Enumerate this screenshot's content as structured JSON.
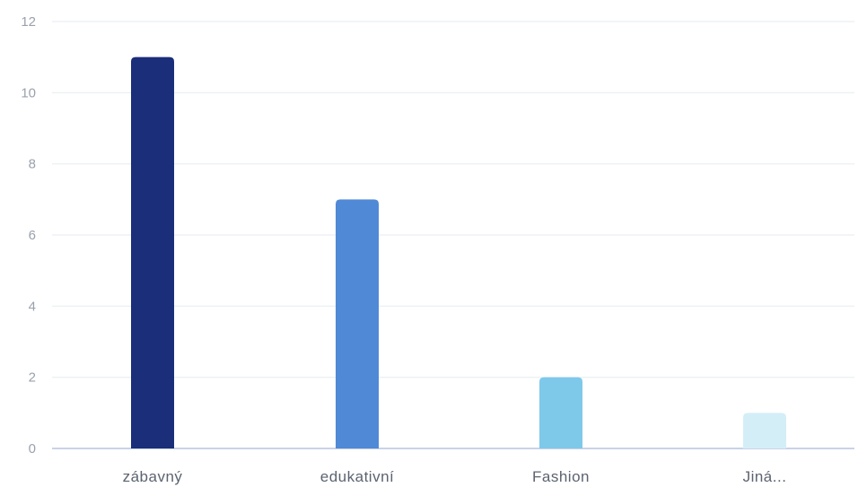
{
  "chart_data": {
    "type": "bar",
    "categories": [
      "zábavný",
      "edukativní",
      "Fashion",
      "Jiná..."
    ],
    "values": [
      11,
      7,
      2,
      1
    ],
    "colors": [
      "#1a2e7a",
      "#5089d6",
      "#7ec9ea",
      "#d4eef8"
    ],
    "yticks": [
      "0",
      "2",
      "4",
      "6",
      "8",
      "10",
      "12"
    ],
    "ylim": [
      0,
      12
    ],
    "grid": true,
    "title": "",
    "xlabel": "",
    "ylabel": ""
  }
}
